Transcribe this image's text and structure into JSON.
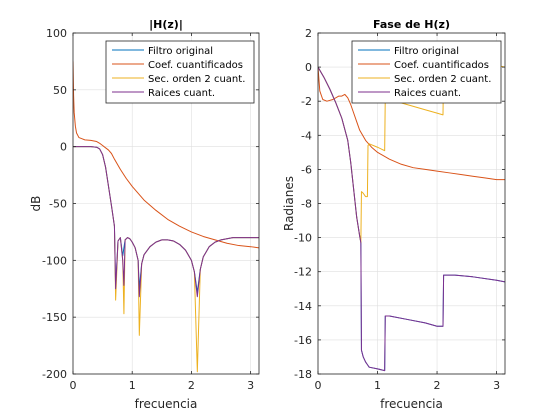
{
  "chart_data": [
    {
      "type": "line",
      "title": "|H(z)|",
      "xlabel": "frecuencia",
      "ylabel": "dB",
      "xlim": [
        0,
        3.1416
      ],
      "ylim": [
        -200,
        100
      ],
      "xticks": [
        0,
        1,
        2,
        3
      ],
      "xtick_labels": [
        "0",
        "1",
        "2",
        "3"
      ],
      "yticks": [
        100,
        50,
        0,
        -50,
        -100,
        -150,
        -200
      ],
      "ytick_labels": [
        "100",
        "50",
        "0",
        "-50",
        "-100",
        "-150",
        "-200"
      ],
      "grid": true,
      "legend": "top-right",
      "series": [
        {
          "name": "Filtro original",
          "color": "#0072BD",
          "x": [
            0,
            0.05,
            0.1,
            0.2,
            0.3,
            0.4,
            0.45,
            0.5,
            0.55,
            0.6,
            0.65,
            0.7,
            0.72,
            0.76,
            0.8,
            0.84,
            0.88,
            0.92,
            0.96,
            1.0,
            1.05,
            1.1,
            1.12,
            1.16,
            1.2,
            1.3,
            1.4,
            1.5,
            1.6,
            1.7,
            1.8,
            1.9,
            2.0,
            2.05,
            2.1,
            2.15,
            2.2,
            2.3,
            2.4,
            2.5,
            2.6,
            2.7,
            2.8,
            2.9,
            3.0,
            3.1416
          ],
          "y": [
            0,
            0,
            0,
            0,
            0,
            -0.5,
            -2,
            -7,
            -18,
            -35,
            -52,
            -70,
            -125,
            -83,
            -80,
            -96,
            -82,
            -80,
            -81,
            -84,
            -89,
            -100,
            -125,
            -103,
            -95,
            -88,
            -84,
            -82,
            -82,
            -83,
            -86,
            -91,
            -100,
            -110,
            -128,
            -108,
            -97,
            -88,
            -84,
            -82,
            -81,
            -80,
            -80,
            -80,
            -80,
            -80
          ]
        },
        {
          "name": "Coef. cuantificados",
          "color": "#D95319",
          "x": [
            0,
            0.01,
            0.02,
            0.04,
            0.06,
            0.1,
            0.15,
            0.2,
            0.3,
            0.4,
            0.45,
            0.5,
            0.55,
            0.6,
            0.65,
            0.7,
            0.8,
            0.9,
            1.0,
            1.2,
            1.4,
            1.6,
            1.8,
            2.0,
            2.2,
            2.4,
            2.6,
            2.8,
            3.0,
            3.1416
          ],
          "y": [
            75,
            45,
            30,
            18,
            12,
            8,
            7,
            6,
            5.5,
            4.5,
            3,
            1,
            -1,
            -3,
            -6,
            -11,
            -20,
            -28,
            -35,
            -47,
            -56,
            -64,
            -70,
            -75,
            -79,
            -82,
            -85,
            -87,
            -88,
            -89
          ]
        },
        {
          "name": "Sec. orden 2 cuant.",
          "color": "#EDB120",
          "x": [
            0,
            0.05,
            0.1,
            0.2,
            0.3,
            0.4,
            0.45,
            0.5,
            0.55,
            0.6,
            0.65,
            0.7,
            0.72,
            0.76,
            0.8,
            0.84,
            0.86,
            0.88,
            0.92,
            0.96,
            1.0,
            1.05,
            1.1,
            1.12,
            1.16,
            1.2,
            1.3,
            1.4,
            1.5,
            1.6,
            1.7,
            1.8,
            1.9,
            2.0,
            2.05,
            2.1,
            2.15,
            2.2,
            2.3,
            2.4,
            2.5,
            2.6,
            2.7,
            2.8,
            2.9,
            3.0,
            3.1416
          ],
          "y": [
            0,
            0,
            0,
            0,
            0,
            -0.5,
            -2,
            -7,
            -18,
            -35,
            -52,
            -70,
            -135,
            -83,
            -80,
            -100,
            -147,
            -82,
            -80,
            -81,
            -84,
            -89,
            -100,
            -166,
            -103,
            -95,
            -88,
            -84,
            -82,
            -82,
            -83,
            -86,
            -91,
            -100,
            -110,
            -198,
            -108,
            -97,
            -88,
            -84,
            -82,
            -81,
            -80,
            -80,
            -80,
            -80,
            -80
          ]
        },
        {
          "name": "Raices cuant.",
          "color": "#7E2F8E",
          "x": [
            0,
            0.05,
            0.1,
            0.2,
            0.3,
            0.4,
            0.45,
            0.5,
            0.55,
            0.6,
            0.65,
            0.7,
            0.72,
            0.76,
            0.8,
            0.84,
            0.86,
            0.88,
            0.92,
            0.96,
            1.0,
            1.05,
            1.1,
            1.12,
            1.16,
            1.2,
            1.3,
            1.4,
            1.5,
            1.6,
            1.7,
            1.8,
            1.9,
            2.0,
            2.05,
            2.1,
            2.15,
            2.2,
            2.3,
            2.4,
            2.5,
            2.6,
            2.7,
            2.8,
            2.9,
            3.0,
            3.1416
          ],
          "y": [
            0,
            0,
            0,
            0,
            0,
            -0.5,
            -2,
            -7,
            -18,
            -35,
            -52,
            -70,
            -125,
            -83,
            -80,
            -100,
            -122,
            -82,
            -80,
            -81,
            -84,
            -89,
            -100,
            -132,
            -103,
            -95,
            -88,
            -84,
            -82,
            -82,
            -83,
            -86,
            -91,
            -100,
            -110,
            -132,
            -108,
            -97,
            -88,
            -84,
            -82,
            -81,
            -80,
            -80,
            -80,
            -80,
            -80
          ]
        }
      ]
    },
    {
      "type": "line",
      "title": "Fase de H(z)",
      "xlabel": "frecuencia",
      "ylabel": "Radianes",
      "xlim": [
        0,
        3.1416
      ],
      "ylim": [
        -18,
        2
      ],
      "xticks": [
        0,
        1,
        2,
        3
      ],
      "xtick_labels": [
        "0",
        "1",
        "2",
        "3"
      ],
      "yticks": [
        2,
        0,
        -2,
        -4,
        -6,
        -8,
        -10,
        -12,
        -14,
        -16,
        -18
      ],
      "ytick_labels": [
        "2",
        "0",
        "-2",
        "-4",
        "-6",
        "-8",
        "-10",
        "-12",
        "-14",
        "-16",
        "-18"
      ],
      "grid": true,
      "legend": "top-right",
      "series": [
        {
          "name": "Filtro original",
          "color": "#0072BD",
          "x": [
            0,
            0.1,
            0.2,
            0.3,
            0.4,
            0.5,
            0.55,
            0.6,
            0.65,
            0.7,
            0.72,
            0.73,
            0.76,
            0.8,
            0.82,
            0.84,
            0.86,
            1.0,
            1.12,
            1.13,
            1.2,
            1.5,
            1.8,
            2.0,
            2.1,
            2.11,
            2.3,
            2.6,
            3.0,
            3.1416
          ],
          "y": [
            0,
            -0.6,
            -1.3,
            -2.1,
            -3.0,
            -4.3,
            -5.6,
            -7.2,
            -8.8,
            -9.9,
            -10.3,
            -16.6,
            -17.0,
            -17.3,
            -17.4,
            -17.5,
            -17.6,
            -17.7,
            -17.8,
            -14.6,
            -14.6,
            -14.8,
            -15.0,
            -15.2,
            -15.2,
            -12.2,
            -12.2,
            -12.3,
            -12.5,
            -12.6
          ]
        },
        {
          "name": "Coef. cuantificados",
          "color": "#D95319",
          "x": [
            0,
            0.03,
            0.08,
            0.15,
            0.25,
            0.35,
            0.4,
            0.45,
            0.5,
            0.55,
            0.6,
            0.65,
            0.7,
            0.8,
            0.9,
            1.0,
            1.2,
            1.4,
            1.6,
            1.8,
            2.0,
            2.2,
            2.4,
            2.6,
            2.8,
            3.0,
            3.1416
          ],
          "y": [
            0,
            -1.4,
            -1.9,
            -2.0,
            -1.9,
            -1.7,
            -1.7,
            -1.6,
            -1.8,
            -2.2,
            -2.7,
            -3.2,
            -3.7,
            -4.3,
            -4.7,
            -5.0,
            -5.4,
            -5.7,
            -5.9,
            -6.0,
            -6.1,
            -6.2,
            -6.3,
            -6.4,
            -6.5,
            -6.6,
            -6.6
          ]
        },
        {
          "name": "Sec. orden 2 cuant.",
          "color": "#EDB120",
          "x": [
            0,
            0.1,
            0.2,
            0.3,
            0.4,
            0.5,
            0.55,
            0.6,
            0.65,
            0.7,
            0.72,
            0.73,
            0.76,
            0.8,
            0.83,
            0.84,
            0.86,
            1.0,
            1.12,
            1.13,
            1.2,
            1.5,
            1.8,
            2.0,
            2.1,
            2.11,
            2.3,
            2.6,
            3.0,
            3.1416
          ],
          "y": [
            0,
            -0.6,
            -1.3,
            -2.1,
            -3.0,
            -4.3,
            -5.6,
            -7.2,
            -8.8,
            -9.9,
            -10.3,
            -7.3,
            -7.4,
            -7.6,
            -7.6,
            -4.6,
            -4.5,
            -4.7,
            -4.9,
            -1.8,
            -1.9,
            -2.2,
            -2.5,
            -2.7,
            -2.8,
            0.3,
            0.3,
            0.2,
            0.1,
            0
          ]
        },
        {
          "name": "Raices cuant.",
          "color": "#7E2F8E",
          "x": [
            0,
            0.1,
            0.2,
            0.3,
            0.4,
            0.5,
            0.55,
            0.6,
            0.65,
            0.7,
            0.72,
            0.73,
            0.76,
            0.8,
            0.82,
            0.84,
            0.86,
            1.0,
            1.12,
            1.13,
            1.2,
            1.5,
            1.8,
            2.0,
            2.1,
            2.11,
            2.3,
            2.6,
            3.0,
            3.1416
          ],
          "y": [
            0,
            -0.6,
            -1.3,
            -2.1,
            -3.0,
            -4.3,
            -5.6,
            -7.2,
            -8.8,
            -9.9,
            -10.3,
            -16.6,
            -17.0,
            -17.3,
            -17.4,
            -17.5,
            -17.6,
            -17.7,
            -17.8,
            -14.6,
            -14.6,
            -14.8,
            -15.0,
            -15.2,
            -15.2,
            -12.2,
            -12.2,
            -12.3,
            -12.5,
            -12.6
          ]
        }
      ]
    }
  ]
}
